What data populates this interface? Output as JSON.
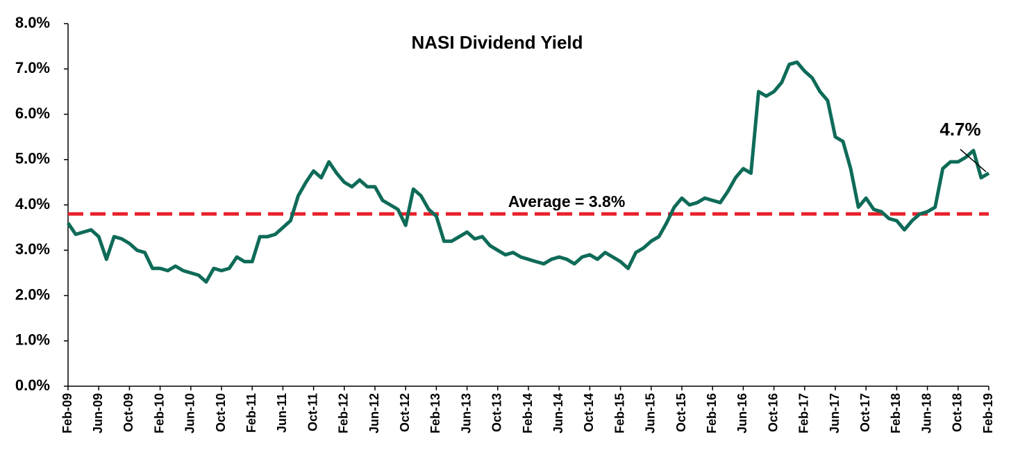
{
  "chart_data": {
    "type": "line",
    "title": "NASI Dividend Yield",
    "categories": [
      "Feb-09",
      null,
      null,
      null,
      "Jun-09",
      null,
      null,
      null,
      "Oct-09",
      null,
      null,
      null,
      "Feb-10",
      null,
      null,
      null,
      "Jun-10",
      null,
      null,
      null,
      "Oct-10",
      null,
      null,
      null,
      "Feb-11",
      null,
      null,
      null,
      "Jun-11",
      null,
      null,
      null,
      "Oct-11",
      null,
      null,
      null,
      "Feb-12",
      null,
      null,
      null,
      "Jun-12",
      null,
      null,
      null,
      "Oct-12",
      null,
      null,
      null,
      "Feb-13",
      null,
      null,
      null,
      "Jun-13",
      null,
      null,
      null,
      "Oct-13",
      null,
      null,
      null,
      "Feb-14",
      null,
      null,
      null,
      "Jun-14",
      null,
      null,
      null,
      "Oct-14",
      null,
      null,
      null,
      "Feb-15",
      null,
      null,
      null,
      "Jun-15",
      null,
      null,
      null,
      "Oct-15",
      null,
      null,
      null,
      "Feb-16",
      null,
      null,
      null,
      "Jun-16",
      null,
      null,
      null,
      "Oct-16",
      null,
      null,
      null,
      "Feb-17",
      null,
      null,
      null,
      "Jun-17",
      null,
      null,
      null,
      "Oct-17",
      null,
      null,
      null,
      "Feb-18",
      null,
      null,
      null,
      "Jun-18",
      null,
      null,
      null,
      "Oct-18",
      null,
      null,
      null,
      "Feb-19"
    ],
    "values": [
      3.6,
      3.35,
      3.4,
      3.45,
      3.3,
      2.8,
      3.3,
      3.25,
      3.15,
      3.0,
      2.95,
      2.6,
      2.6,
      2.55,
      2.65,
      2.55,
      2.5,
      2.45,
      2.3,
      2.6,
      2.55,
      2.6,
      2.85,
      2.75,
      2.75,
      3.3,
      3.3,
      3.35,
      3.5,
      3.65,
      4.2,
      4.5,
      4.75,
      4.6,
      4.95,
      4.7,
      4.5,
      4.4,
      4.55,
      4.4,
      4.4,
      4.1,
      4.0,
      3.9,
      3.55,
      4.35,
      4.2,
      3.9,
      3.75,
      3.2,
      3.2,
      3.3,
      3.4,
      3.25,
      3.3,
      3.1,
      3.0,
      2.9,
      2.95,
      2.85,
      2.8,
      2.75,
      2.7,
      2.8,
      2.85,
      2.8,
      2.7,
      2.85,
      2.9,
      2.8,
      2.95,
      2.85,
      2.75,
      2.6,
      2.95,
      3.05,
      3.2,
      3.3,
      3.6,
      3.95,
      4.15,
      4.0,
      4.05,
      4.15,
      4.1,
      4.05,
      4.3,
      4.6,
      4.8,
      4.7,
      6.5,
      6.4,
      6.5,
      6.7,
      7.1,
      7.15,
      6.95,
      6.8,
      6.5,
      6.3,
      5.5,
      5.4,
      4.8,
      3.95,
      4.15,
      3.9,
      3.85,
      3.7,
      3.65,
      3.45,
      3.65,
      3.8,
      3.85,
      3.95,
      4.8,
      4.95,
      4.95,
      5.05,
      5.2,
      4.6,
      4.7
    ],
    "color": "#0e6b58",
    "average": 3.8,
    "average_label": "Average = 3.8%",
    "average_color": "#e8202a",
    "end_label": "4.7%",
    "ylim": [
      0,
      8
    ],
    "yticks": [
      {
        "value": 0,
        "label": "0.0%"
      },
      {
        "value": 1,
        "label": "1.0%"
      },
      {
        "value": 2,
        "label": "2.0%"
      },
      {
        "value": 3,
        "label": "3.0%"
      },
      {
        "value": 4,
        "label": "4.0%"
      },
      {
        "value": 5,
        "label": "5.0%"
      },
      {
        "value": 6,
        "label": "6.0%"
      },
      {
        "value": 7,
        "label": "7.0%"
      },
      {
        "value": 8,
        "label": "8.0%"
      }
    ],
    "grid": false
  }
}
